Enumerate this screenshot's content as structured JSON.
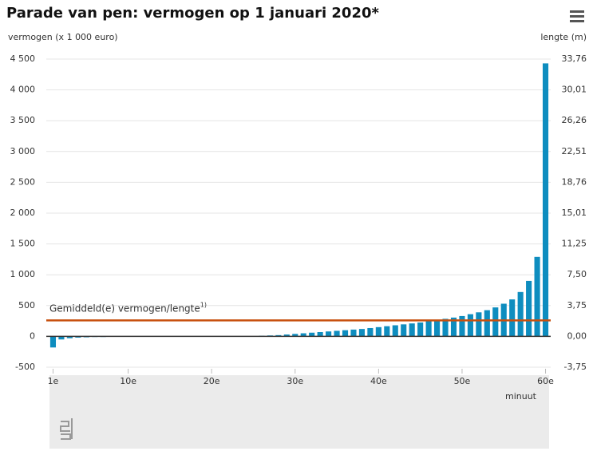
{
  "chart_data": {
    "type": "bar",
    "title": "Parade van pen: vermogen op 1 januari 2020*",
    "y_label": "vermogen (x 1 000 euro)",
    "y2_label": "lengte (m)",
    "x_label": "minuut",
    "color": "#0e8dbf",
    "x": [
      1,
      2,
      3,
      4,
      5,
      6,
      7,
      8,
      9,
      10,
      11,
      12,
      13,
      14,
      15,
      16,
      17,
      18,
      19,
      20,
      21,
      22,
      23,
      24,
      25,
      26,
      27,
      28,
      29,
      30,
      31,
      32,
      33,
      34,
      35,
      36,
      37,
      38,
      39,
      40,
      41,
      42,
      43,
      44,
      45,
      46,
      47,
      48,
      49,
      50,
      51,
      52,
      53,
      54,
      55,
      56,
      57,
      58,
      59,
      60
    ],
    "values": [
      -180,
      -50,
      -30,
      -20,
      -15,
      -10,
      -10,
      0,
      0,
      0,
      0,
      0,
      0,
      0,
      0,
      0,
      0,
      0,
      0,
      0,
      0,
      0,
      0,
      0,
      5,
      10,
      15,
      20,
      30,
      40,
      50,
      60,
      70,
      80,
      90,
      100,
      110,
      120,
      135,
      150,
      165,
      180,
      195,
      210,
      225,
      245,
      265,
      285,
      305,
      330,
      360,
      390,
      425,
      470,
      530,
      600,
      720,
      900,
      1290,
      4430
    ],
    "xlim": [
      0,
      61
    ],
    "xticks": [
      {
        "value": 1,
        "label": "1e"
      },
      {
        "value": 10,
        "label": "10e"
      },
      {
        "value": 20,
        "label": "20e"
      },
      {
        "value": 30,
        "label": "30e"
      },
      {
        "value": 40,
        "label": "40e"
      },
      {
        "value": 50,
        "label": "50e"
      },
      {
        "value": 60,
        "label": "60e"
      }
    ],
    "ylim": [
      -500,
      4500
    ],
    "yticks": [
      -500,
      0,
      500,
      {
        "value": 1000,
        "label": "1 000"
      },
      {
        "value": 1500,
        "label": "1 500"
      },
      {
        "value": 2000,
        "label": "2 000"
      },
      {
        "value": 2500,
        "label": "2 500"
      },
      {
        "value": 3000,
        "label": "3 000"
      },
      {
        "value": 3500,
        "label": "3 500"
      },
      {
        "value": 4000,
        "label": "4 000"
      },
      {
        "value": 4500,
        "label": "4 500"
      }
    ],
    "y2lim": [
      -3.75,
      33.76
    ],
    "y2ticks": [
      {
        "value": -3.75,
        "label": "-3,75"
      },
      {
        "value": 0,
        "label": "0,00"
      },
      {
        "value": 3.75,
        "label": "3,75"
      },
      {
        "value": 7.5,
        "label": "7,50"
      },
      {
        "value": 11.25,
        "label": "11,25"
      },
      {
        "value": 15.01,
        "label": "15,01"
      },
      {
        "value": 18.76,
        "label": "18,76"
      },
      {
        "value": 22.51,
        "label": "22,51"
      },
      {
        "value": 26.26,
        "label": "26,26"
      },
      {
        "value": 30.01,
        "label": "30,01"
      },
      {
        "value": 33.76,
        "label": "33,76"
      }
    ],
    "grid": true,
    "reference_line": {
      "value": 260,
      "label": "Gemiddeld(e) vermogen/lengte",
      "marker": "1)",
      "color": "#c8500f"
    }
  }
}
